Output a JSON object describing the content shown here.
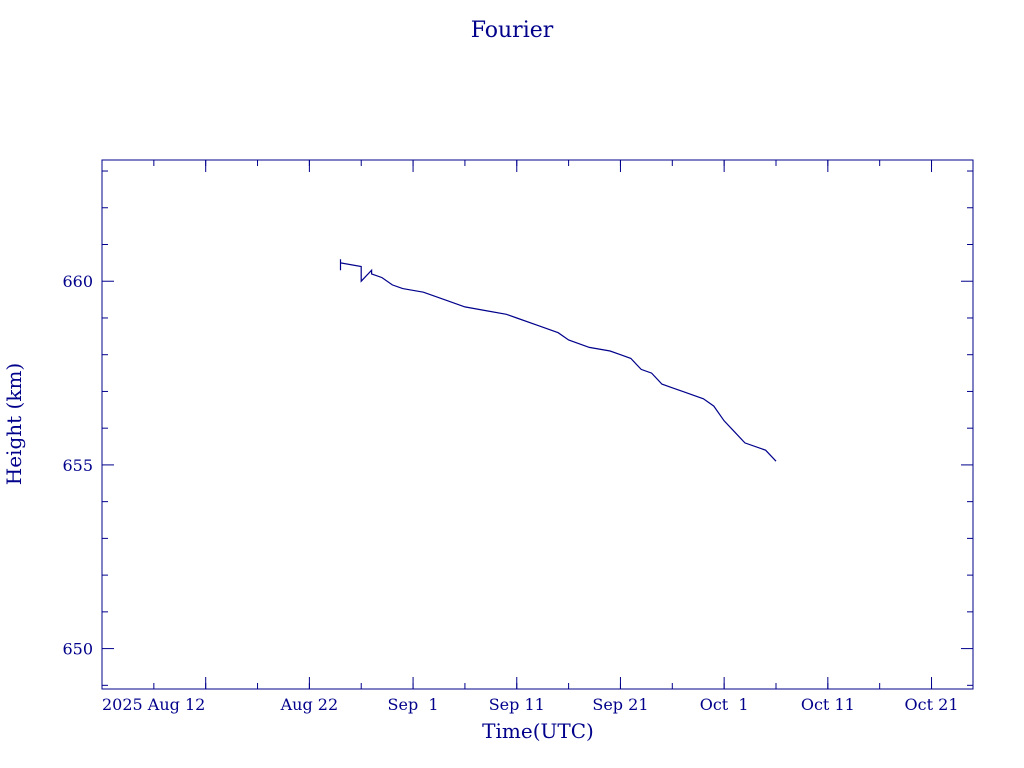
{
  "chart_data": {
    "type": "line",
    "title": "Fourier",
    "xlabel": "Time(UTC)",
    "ylabel": "Height (km)",
    "x_tick_labels": [
      "2025 Aug 12",
      "Aug 22",
      "Sep  1",
      "Sep 11",
      "Sep 21",
      "Oct  1",
      "Oct 11",
      "Oct 21"
    ],
    "x_tick_dates": [
      "2025-08-12",
      "2025-08-22",
      "2025-09-01",
      "2025-09-11",
      "2025-09-21",
      "2025-10-01",
      "2025-10-11",
      "2025-10-21"
    ],
    "xlim": [
      "2025-08-02",
      "2025-10-25"
    ],
    "ylim": [
      648.9,
      663.3
    ],
    "y_ticks": [
      650,
      655,
      660
    ],
    "grid": false,
    "series": [
      {
        "x": [
          "2025-08-25",
          "2025-08-25",
          "2025-08-25",
          "2025-08-25",
          "2025-08-27",
          "2025-08-27",
          "2025-08-28",
          "2025-08-28",
          "2025-08-29",
          "2025-08-30",
          "2025-08-31",
          "2025-09-02",
          "2025-09-04",
          "2025-09-06",
          "2025-09-08",
          "2025-09-10",
          "2025-09-11",
          "2025-09-13",
          "2025-09-15",
          "2025-09-16",
          "2025-09-18",
          "2025-09-20",
          "2025-09-21",
          "2025-09-22",
          "2025-09-23",
          "2025-09-24",
          "2025-09-25",
          "2025-09-26",
          "2025-09-27",
          "2025-09-29",
          "2025-09-30",
          "2025-10-01",
          "2025-10-02",
          "2025-10-03",
          "2025-10-05",
          "2025-10-06"
        ],
        "y": [
          660.6,
          660.4,
          660.3,
          660.5,
          660.4,
          660.0,
          660.3,
          660.2,
          660.1,
          659.9,
          659.8,
          659.7,
          659.5,
          659.3,
          659.2,
          659.1,
          659.0,
          658.8,
          658.6,
          658.4,
          658.2,
          658.1,
          658.0,
          657.9,
          657.6,
          657.5,
          657.2,
          657.1,
          657.0,
          656.8,
          656.6,
          656.2,
          655.9,
          655.6,
          655.4,
          655.1
        ]
      }
    ]
  }
}
